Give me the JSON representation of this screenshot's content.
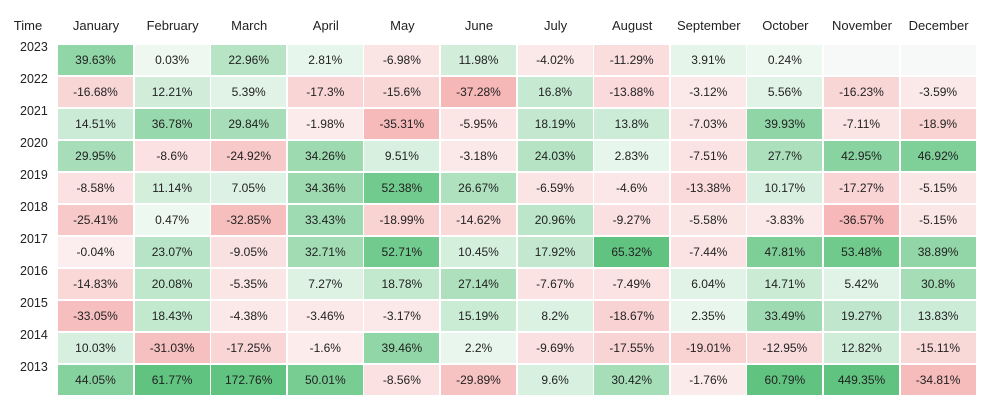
{
  "table": {
    "corner": "Time",
    "columns": [
      "January",
      "February",
      "March",
      "April",
      "May",
      "June",
      "July",
      "August",
      "September",
      "October",
      "November",
      "December"
    ],
    "rows": [
      {
        "year": "2023",
        "cells": [
          "39.63%",
          "0.03%",
          "22.96%",
          "2.81%",
          "-6.98%",
          "11.98%",
          "-4.02%",
          "-11.29%",
          "3.91%",
          "0.24%",
          null,
          null
        ]
      },
      {
        "year": "2022",
        "cells": [
          "-16.68%",
          "12.21%",
          "5.39%",
          "-17.3%",
          "-15.6%",
          "-37.28%",
          "16.8%",
          "-13.88%",
          "-3.12%",
          "5.56%",
          "-16.23%",
          "-3.59%"
        ]
      },
      {
        "year": "2021",
        "cells": [
          "14.51%",
          "36.78%",
          "29.84%",
          "-1.98%",
          "-35.31%",
          "-5.95%",
          "18.19%",
          "13.8%",
          "-7.03%",
          "39.93%",
          "-7.11%",
          "-18.9%"
        ]
      },
      {
        "year": "2020",
        "cells": [
          "29.95%",
          "-8.6%",
          "-24.92%",
          "34.26%",
          "9.51%",
          "-3.18%",
          "24.03%",
          "2.83%",
          "-7.51%",
          "27.7%",
          "42.95%",
          "46.92%"
        ]
      },
      {
        "year": "2019",
        "cells": [
          "-8.58%",
          "11.14%",
          "7.05%",
          "34.36%",
          "52.38%",
          "26.67%",
          "-6.59%",
          "-4.6%",
          "-13.38%",
          "10.17%",
          "-17.27%",
          "-5.15%"
        ]
      },
      {
        "year": "2018",
        "cells": [
          "-25.41%",
          "0.47%",
          "-32.85%",
          "33.43%",
          "-18.99%",
          "-14.62%",
          "20.96%",
          "-9.27%",
          "-5.58%",
          "-3.83%",
          "-36.57%",
          "-5.15%"
        ]
      },
      {
        "year": "2017",
        "cells": [
          "-0.04%",
          "23.07%",
          "-9.05%",
          "32.71%",
          "52.71%",
          "10.45%",
          "17.92%",
          "65.32%",
          "-7.44%",
          "47.81%",
          "53.48%",
          "38.89%"
        ]
      },
      {
        "year": "2016",
        "cells": [
          "-14.83%",
          "20.08%",
          "-5.35%",
          "7.27%",
          "18.78%",
          "27.14%",
          "-7.67%",
          "-7.49%",
          "6.04%",
          "14.71%",
          "5.42%",
          "30.8%"
        ]
      },
      {
        "year": "2015",
        "cells": [
          "-33.05%",
          "18.43%",
          "-4.38%",
          "-3.46%",
          "-3.17%",
          "15.19%",
          "8.2%",
          "-18.67%",
          "2.35%",
          "33.49%",
          "19.27%",
          "13.83%"
        ]
      },
      {
        "year": "2014",
        "cells": [
          "10.03%",
          "-31.03%",
          "-17.25%",
          "-1.6%",
          "39.46%",
          "2.2%",
          "-9.69%",
          "-17.55%",
          "-19.01%",
          "-12.95%",
          "12.82%",
          "-15.11%"
        ]
      },
      {
        "year": "2013",
        "cells": [
          "44.05%",
          "61.77%",
          "172.76%",
          "50.01%",
          "-8.56%",
          "-29.89%",
          "9.6%",
          "30.42%",
          "-1.76%",
          "60.79%",
          "449.35%",
          "-34.81%"
        ]
      }
    ]
  }
}
